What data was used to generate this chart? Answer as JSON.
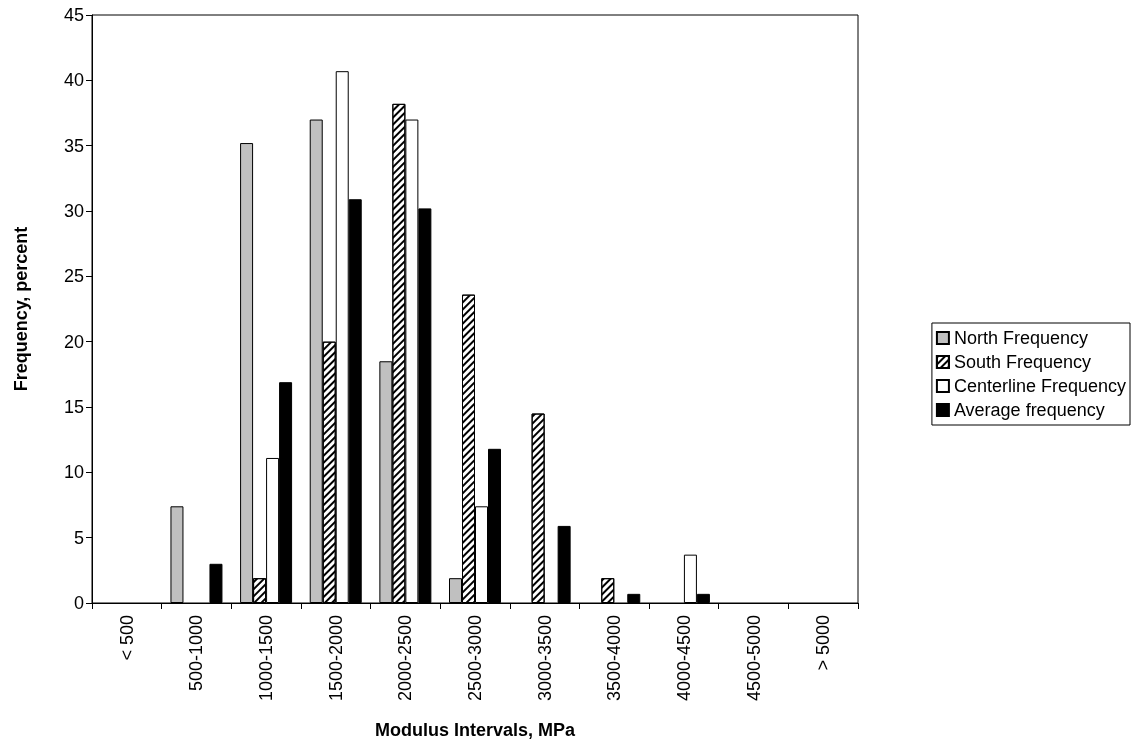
{
  "chart_data": {
    "type": "bar",
    "xlabel": "Modulus Intervals, MPa",
    "ylabel": "Frequency, percent",
    "categories": [
      "< 500",
      "500-1000",
      "1000-1500",
      "1500-2000",
      "2000-2500",
      "2500-3000",
      "3000-3500",
      "3500-4000",
      "4000-4500",
      "4500-5000",
      "> 5000"
    ],
    "series": [
      {
        "name": "North Frequency",
        "color": "#c0c0c0",
        "values": [
          0,
          7.4,
          35.2,
          37,
          18.5,
          1.9,
          0,
          0,
          0,
          0,
          0
        ]
      },
      {
        "name": "South Frequency",
        "color": "#000000",
        "values": [
          0,
          0,
          1.9,
          20,
          38.2,
          23.6,
          14.5,
          1.9,
          0,
          0,
          0
        ]
      },
      {
        "name": "Centerline Frequency",
        "color": "#ffffff",
        "values": [
          0,
          0,
          11.1,
          40.7,
          37,
          7.4,
          0,
          0,
          3.7,
          0,
          0
        ]
      },
      {
        "name": "Average frequency",
        "color": "#000000",
        "values": [
          0,
          3,
          16.9,
          30.9,
          30.2,
          11.8,
          5.9,
          0.7,
          0.7,
          0,
          0
        ]
      }
    ],
    "ylim": [
      0,
      45
    ],
    "yticks": [
      0,
      5,
      10,
      15,
      20,
      25,
      30,
      35,
      40,
      45
    ],
    "grid": false,
    "legend": "right"
  }
}
